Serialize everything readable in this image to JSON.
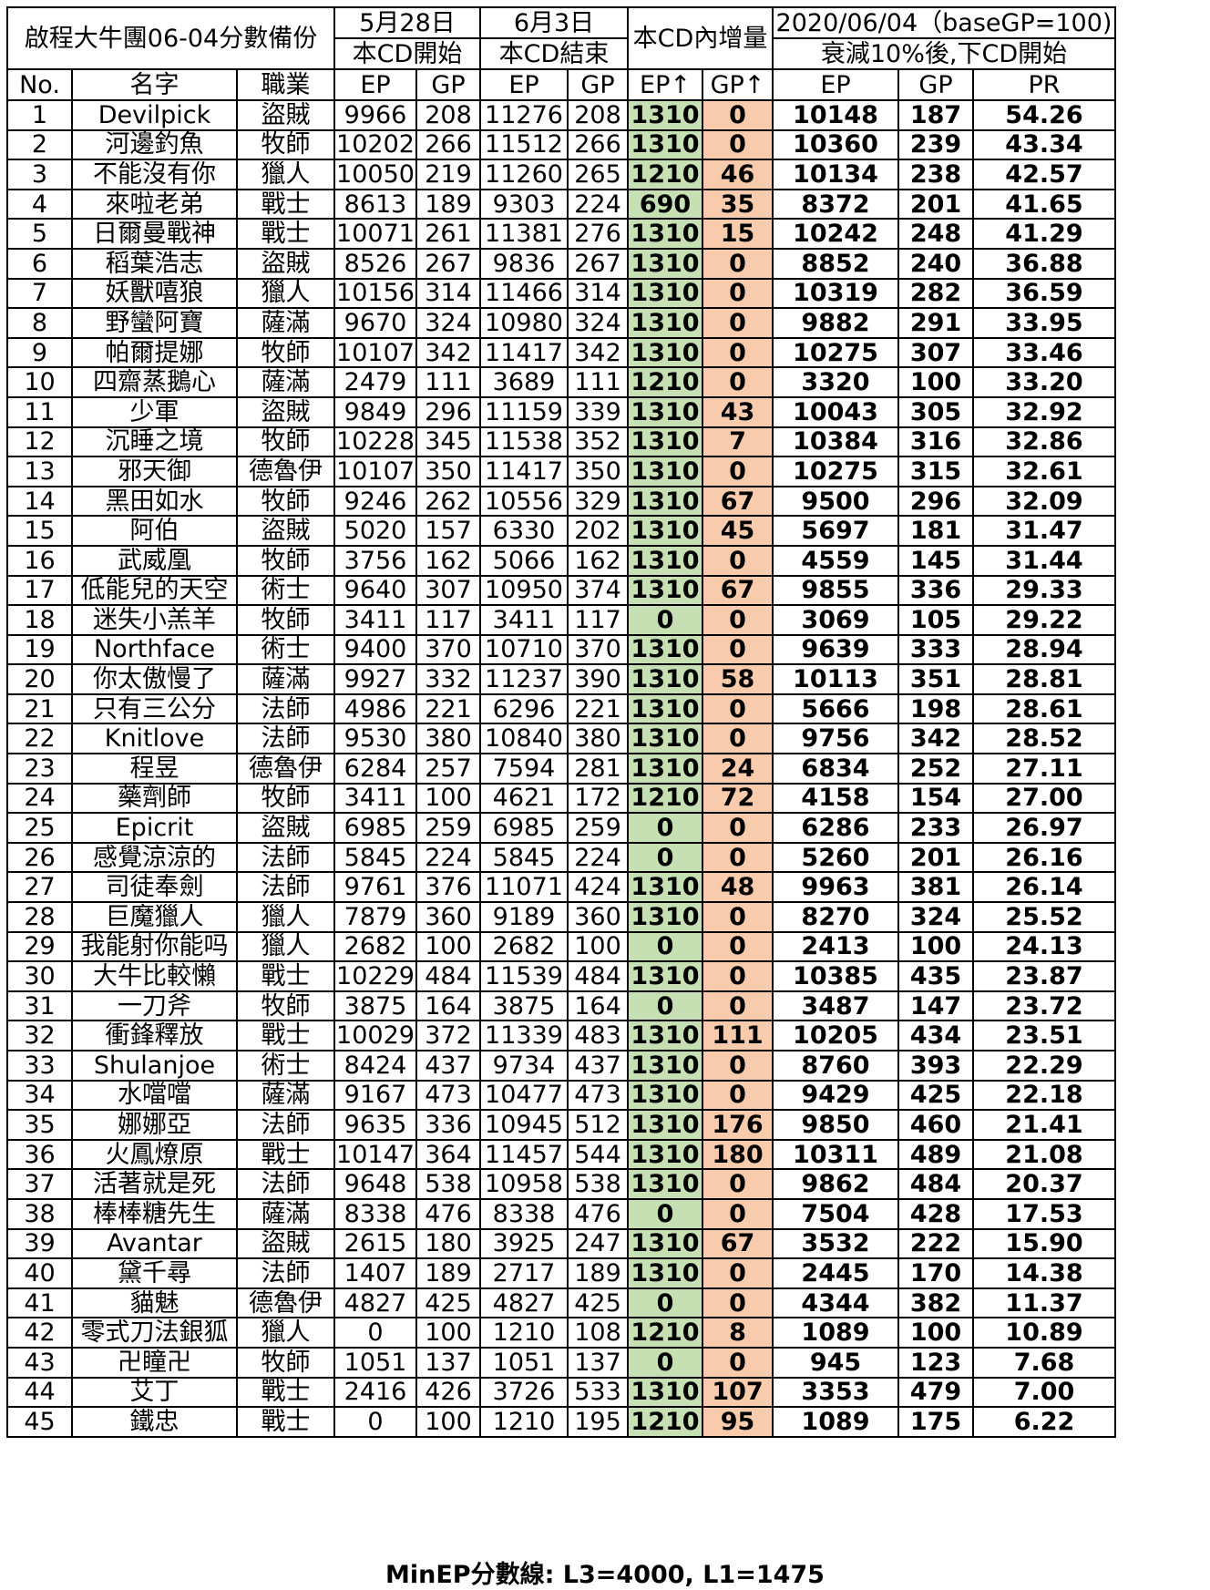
{
  "title": "啟程大牛團06-04分數備份",
  "headers": {
    "start_date": "5月28日",
    "start_label": "本CD開始",
    "end_date": "6月3日",
    "end_label": "本CD結束",
    "increase_label": "本CD內增量",
    "decay_date": "2020/06/04（baseGP=100)",
    "decay_label": "衰減10%後,下CD開始",
    "cols": [
      "No.",
      "名字",
      "職業",
      "EP",
      "GP",
      "EP",
      "GP",
      "EP↑",
      "GP↑",
      "EP",
      "GP",
      "PR"
    ]
  },
  "colors": {
    "ep_increase_bg": "#c6e0b4",
    "gp_increase_bg": "#f8cbad"
  },
  "rows": [
    [
      "1",
      "Devilpick",
      "盜賊",
      "9966",
      "208",
      "11276",
      "208",
      "1310",
      "0",
      "10148",
      "187",
      "54.26"
    ],
    [
      "2",
      "河邊釣魚",
      "牧師",
      "10202",
      "266",
      "11512",
      "266",
      "1310",
      "0",
      "10360",
      "239",
      "43.34"
    ],
    [
      "3",
      "不能沒有你",
      "獵人",
      "10050",
      "219",
      "11260",
      "265",
      "1210",
      "46",
      "10134",
      "238",
      "42.57"
    ],
    [
      "4",
      "來啦老弟",
      "戰士",
      "8613",
      "189",
      "9303",
      "224",
      "690",
      "35",
      "8372",
      "201",
      "41.65"
    ],
    [
      "5",
      "日爾曼戰神",
      "戰士",
      "10071",
      "261",
      "11381",
      "276",
      "1310",
      "15",
      "10242",
      "248",
      "41.29"
    ],
    [
      "6",
      "稻葉浩志",
      "盜賊",
      "8526",
      "267",
      "9836",
      "267",
      "1310",
      "0",
      "8852",
      "240",
      "36.88"
    ],
    [
      "7",
      "妖獸嘻狼",
      "獵人",
      "10156",
      "314",
      "11466",
      "314",
      "1310",
      "0",
      "10319",
      "282",
      "36.59"
    ],
    [
      "8",
      "野蠻阿寶",
      "薩滿",
      "9670",
      "324",
      "10980",
      "324",
      "1310",
      "0",
      "9882",
      "291",
      "33.95"
    ],
    [
      "9",
      "帕爾提娜",
      "牧師",
      "10107",
      "342",
      "11417",
      "342",
      "1310",
      "0",
      "10275",
      "307",
      "33.46"
    ],
    [
      "10",
      "四齋蒸鵝心",
      "薩滿",
      "2479",
      "111",
      "3689",
      "111",
      "1210",
      "0",
      "3320",
      "100",
      "33.20"
    ],
    [
      "11",
      "少軍",
      "盜賊",
      "9849",
      "296",
      "11159",
      "339",
      "1310",
      "43",
      "10043",
      "305",
      "32.92"
    ],
    [
      "12",
      "沉睡之境",
      "牧師",
      "10228",
      "345",
      "11538",
      "352",
      "1310",
      "7",
      "10384",
      "316",
      "32.86"
    ],
    [
      "13",
      "邪天御",
      "德魯伊",
      "10107",
      "350",
      "11417",
      "350",
      "1310",
      "0",
      "10275",
      "315",
      "32.61"
    ],
    [
      "14",
      "黑田如水",
      "牧師",
      "9246",
      "262",
      "10556",
      "329",
      "1310",
      "67",
      "9500",
      "296",
      "32.09"
    ],
    [
      "15",
      "阿伯",
      "盜賊",
      "5020",
      "157",
      "6330",
      "202",
      "1310",
      "45",
      "5697",
      "181",
      "31.47"
    ],
    [
      "16",
      "武威凰",
      "牧師",
      "3756",
      "162",
      "5066",
      "162",
      "1310",
      "0",
      "4559",
      "145",
      "31.44"
    ],
    [
      "17",
      "低能兒的天空",
      "術士",
      "9640",
      "307",
      "10950",
      "374",
      "1310",
      "67",
      "9855",
      "336",
      "29.33"
    ],
    [
      "18",
      "迷失小羔羊",
      "牧師",
      "3411",
      "117",
      "3411",
      "117",
      "0",
      "0",
      "3069",
      "105",
      "29.22"
    ],
    [
      "19",
      "Northface",
      "術士",
      "9400",
      "370",
      "10710",
      "370",
      "1310",
      "0",
      "9639",
      "333",
      "28.94"
    ],
    [
      "20",
      "你太傲慢了",
      "薩滿",
      "9927",
      "332",
      "11237",
      "390",
      "1310",
      "58",
      "10113",
      "351",
      "28.81"
    ],
    [
      "21",
      "只有三公分",
      "法師",
      "4986",
      "221",
      "6296",
      "221",
      "1310",
      "0",
      "5666",
      "198",
      "28.61"
    ],
    [
      "22",
      "Knitlove",
      "法師",
      "9530",
      "380",
      "10840",
      "380",
      "1310",
      "0",
      "9756",
      "342",
      "28.52"
    ],
    [
      "23",
      "程昱",
      "德魯伊",
      "6284",
      "257",
      "7594",
      "281",
      "1310",
      "24",
      "6834",
      "252",
      "27.11"
    ],
    [
      "24",
      "藥劑師",
      "牧師",
      "3411",
      "100",
      "4621",
      "172",
      "1210",
      "72",
      "4158",
      "154",
      "27.00"
    ],
    [
      "25",
      "Epicrit",
      "盜賊",
      "6985",
      "259",
      "6985",
      "259",
      "0",
      "0",
      "6286",
      "233",
      "26.97"
    ],
    [
      "26",
      "感覺涼涼的",
      "法師",
      "5845",
      "224",
      "5845",
      "224",
      "0",
      "0",
      "5260",
      "201",
      "26.16"
    ],
    [
      "27",
      "司徒奉劍",
      "法師",
      "9761",
      "376",
      "11071",
      "424",
      "1310",
      "48",
      "9963",
      "381",
      "26.14"
    ],
    [
      "28",
      "巨魔獵人",
      "獵人",
      "7879",
      "360",
      "9189",
      "360",
      "1310",
      "0",
      "8270",
      "324",
      "25.52"
    ],
    [
      "29",
      "我能射你能吗",
      "獵人",
      "2682",
      "100",
      "2682",
      "100",
      "0",
      "0",
      "2413",
      "100",
      "24.13"
    ],
    [
      "30",
      "大牛比較懶",
      "戰士",
      "10229",
      "484",
      "11539",
      "484",
      "1310",
      "0",
      "10385",
      "435",
      "23.87"
    ],
    [
      "31",
      "一刀斧",
      "牧師",
      "3875",
      "164",
      "3875",
      "164",
      "0",
      "0",
      "3487",
      "147",
      "23.72"
    ],
    [
      "32",
      "衝鋒釋放",
      "戰士",
      "10029",
      "372",
      "11339",
      "483",
      "1310",
      "111",
      "10205",
      "434",
      "23.51"
    ],
    [
      "33",
      "Shulanjoe",
      "術士",
      "8424",
      "437",
      "9734",
      "437",
      "1310",
      "0",
      "8760",
      "393",
      "22.29"
    ],
    [
      "34",
      "水噹噹",
      "薩滿",
      "9167",
      "473",
      "10477",
      "473",
      "1310",
      "0",
      "9429",
      "425",
      "22.18"
    ],
    [
      "35",
      "娜娜亞",
      "法師",
      "9635",
      "336",
      "10945",
      "512",
      "1310",
      "176",
      "9850",
      "460",
      "21.41"
    ],
    [
      "36",
      "火鳳燎原",
      "戰士",
      "10147",
      "364",
      "11457",
      "544",
      "1310",
      "180",
      "10311",
      "489",
      "21.08"
    ],
    [
      "37",
      "活著就是死",
      "法師",
      "9648",
      "538",
      "10958",
      "538",
      "1310",
      "0",
      "9862",
      "484",
      "20.37"
    ],
    [
      "38",
      "棒棒糖先生",
      "薩滿",
      "8338",
      "476",
      "8338",
      "476",
      "0",
      "0",
      "7504",
      "428",
      "17.53"
    ],
    [
      "39",
      "Avantar",
      "盜賊",
      "2615",
      "180",
      "3925",
      "247",
      "1310",
      "67",
      "3532",
      "222",
      "15.90"
    ],
    [
      "40",
      "黛千尋",
      "法師",
      "1407",
      "189",
      "2717",
      "189",
      "1310",
      "0",
      "2445",
      "170",
      "14.38"
    ],
    [
      "41",
      "貓魅",
      "德魯伊",
      "4827",
      "425",
      "4827",
      "425",
      "0",
      "0",
      "4344",
      "382",
      "11.37"
    ],
    [
      "42",
      "零式刀法銀狐",
      "獵人",
      "0",
      "100",
      "1210",
      "108",
      "1210",
      "8",
      "1089",
      "100",
      "10.89"
    ],
    [
      "43",
      "卍瞳卍",
      "牧師",
      "1051",
      "137",
      "1051",
      "137",
      "0",
      "0",
      "945",
      "123",
      "7.68"
    ],
    [
      "44",
      "艾丁",
      "戰士",
      "2416",
      "426",
      "3726",
      "533",
      "1310",
      "107",
      "3353",
      "479",
      "7.00"
    ],
    [
      "45",
      "鐵忠",
      "戰士",
      "0",
      "100",
      "1210",
      "195",
      "1210",
      "95",
      "1089",
      "175",
      "6.22"
    ]
  ],
  "footer": "MinEP分數線: L3=4000, L1=1475"
}
